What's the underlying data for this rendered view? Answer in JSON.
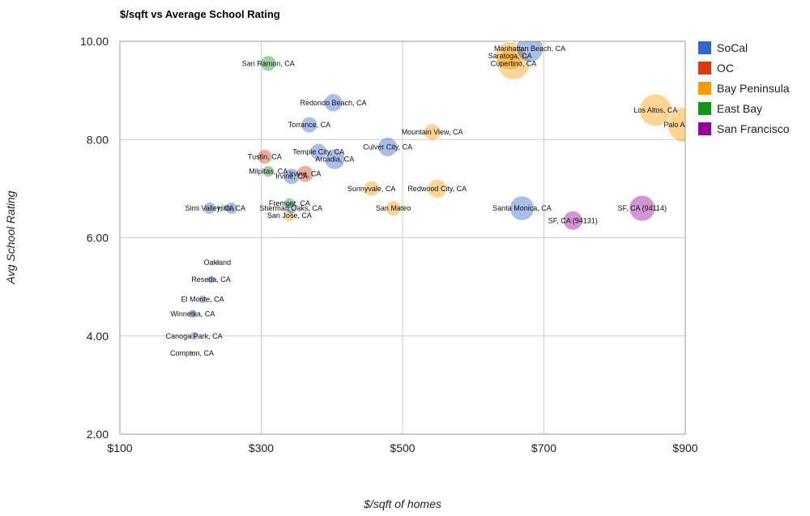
{
  "chart_data": {
    "type": "bubble",
    "title": "$/sqft vs Average School Rating",
    "xlabel": "$/sqft of homes",
    "ylabel": "Avg School Rating",
    "xlim": [
      100,
      900
    ],
    "ylim": [
      2,
      10
    ],
    "x_ticks": [
      {
        "value": 100,
        "label": "$100"
      },
      {
        "value": 300,
        "label": "$300"
      },
      {
        "value": 500,
        "label": "$500"
      },
      {
        "value": 700,
        "label": "$700"
      },
      {
        "value": 900,
        "label": "$900"
      }
    ],
    "y_ticks": [
      {
        "value": 2,
        "label": "2.00"
      },
      {
        "value": 4,
        "label": "4.00"
      },
      {
        "value": 6,
        "label": "6.00"
      },
      {
        "value": 8,
        "label": "8.00"
      },
      {
        "value": 10,
        "label": "10.00"
      }
    ],
    "legend": [
      {
        "name": "SoCal",
        "color": "#3366cc"
      },
      {
        "name": "OC",
        "color": "#dc3912"
      },
      {
        "name": "Bay Peninsula",
        "color": "#ff9900"
      },
      {
        "name": "East Bay",
        "color": "#109618"
      },
      {
        "name": "San Francisco",
        "color": "#990099"
      }
    ],
    "points": [
      {
        "label": "Palo Alto, CA",
        "group": "Bay Peninsula",
        "x": 900,
        "y": 8.3,
        "size": 5.5
      },
      {
        "label": "Los Altos, CA",
        "group": "Bay Peninsula",
        "x": 858,
        "y": 8.6,
        "size": 5.0
      },
      {
        "label": "Cupertino, CA",
        "group": "Bay Peninsula",
        "x": 657,
        "y": 9.55,
        "size": 5.0
      },
      {
        "label": "Saratoga, CA",
        "group": "Bay Peninsula",
        "x": 652,
        "y": 9.7,
        "size": 4.5
      },
      {
        "label": "Manhattan Beach, CA",
        "group": "SoCal",
        "x": 680,
        "y": 9.85,
        "size": 4.2
      },
      {
        "label": "San Ramon, CA",
        "group": "East Bay",
        "x": 310,
        "y": 9.55,
        "size": 2.4
      },
      {
        "label": "Redondo Beach, CA",
        "group": "SoCal",
        "x": 402,
        "y": 8.75,
        "size": 2.8
      },
      {
        "label": "Torrance, CA",
        "group": "SoCal",
        "x": 368,
        "y": 8.3,
        "size": 2.5
      },
      {
        "label": "Mountain View, CA",
        "group": "Bay Peninsula",
        "x": 542,
        "y": 8.15,
        "size": 2.6
      },
      {
        "label": "Culver City, CA",
        "group": "SoCal",
        "x": 479,
        "y": 7.85,
        "size": 3.0
      },
      {
        "label": "Temple City, CA",
        "group": "SoCal",
        "x": 381,
        "y": 7.75,
        "size": 2.6
      },
      {
        "label": "Arcadia, CA",
        "group": "SoCal",
        "x": 404,
        "y": 7.6,
        "size": 3.2
      },
      {
        "label": "Tustin, CA",
        "group": "OC",
        "x": 305,
        "y": 7.65,
        "size": 2.3
      },
      {
        "label": "Milpitas, CA",
        "group": "East Bay",
        "x": 310,
        "y": 7.35,
        "size": 1.8
      },
      {
        "label": "Irvine, CA",
        "group": "OC",
        "x": 362,
        "y": 7.3,
        "size": 2.6
      },
      {
        "label": "Irvine, CA",
        "group": "SoCal",
        "x": 343,
        "y": 7.25,
        "size": 2.5
      },
      {
        "label": "Sunnyvale, CA",
        "group": "Bay Peninsula",
        "x": 456,
        "y": 7.0,
        "size": 2.4
      },
      {
        "label": "Redwood City, CA",
        "group": "Bay Peninsula",
        "x": 549,
        "y": 7.0,
        "size": 2.9
      },
      {
        "label": "Fremont, CA",
        "group": "East Bay",
        "x": 340,
        "y": 6.7,
        "size": 1.7
      },
      {
        "label": "Sherman Oaks, CA",
        "group": "SoCal",
        "x": 342,
        "y": 6.6,
        "size": 1.8
      },
      {
        "label": "San Jose, CA",
        "group": "Bay Peninsula",
        "x": 340,
        "y": 6.45,
        "size": 1.9
      },
      {
        "label": "San Mateo",
        "group": "Bay Peninsula",
        "x": 487,
        "y": 6.6,
        "size": 2.4
      },
      {
        "label": "Simi Valley, CA",
        "group": "SoCal",
        "x": 227,
        "y": 6.6,
        "size": 1.9
      },
      {
        "label": "Hills, CA",
        "group": "SoCal",
        "x": 258,
        "y": 6.6,
        "size": 1.9
      },
      {
        "label": "Santa Monica, CA",
        "group": "SoCal",
        "x": 669,
        "y": 6.6,
        "size": 3.8
      },
      {
        "label": "SF, CA (94131)",
        "group": "San Francisco",
        "x": 741,
        "y": 6.35,
        "size": 3.0
      },
      {
        "label": "SF, CA (94114)",
        "group": "San Francisco",
        "x": 839,
        "y": 6.6,
        "size": 4.0
      },
      {
        "label": "Oakland",
        "group": "East Bay",
        "x": 238,
        "y": 5.5,
        "size": 0.7
      },
      {
        "label": "Reseda, CA",
        "group": "SoCal",
        "x": 229,
        "y": 5.15,
        "size": 1.3
      },
      {
        "label": "El Monte, CA",
        "group": "SoCal",
        "x": 217,
        "y": 4.75,
        "size": 1.3
      },
      {
        "label": "Winnetka, CA",
        "group": "SoCal",
        "x": 203,
        "y": 4.45,
        "size": 1.4
      },
      {
        "label": "Canoga Park, CA",
        "group": "SoCal",
        "x": 205,
        "y": 4.0,
        "size": 1.3
      },
      {
        "label": "Compton, CA",
        "group": "SoCal",
        "x": 202,
        "y": 3.65,
        "size": 0.6
      }
    ]
  }
}
